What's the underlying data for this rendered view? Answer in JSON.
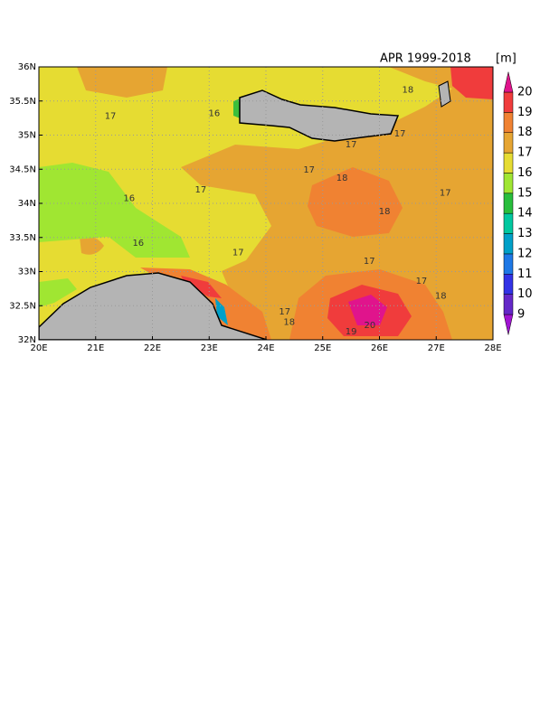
{
  "chart_data": {
    "type": "contour-map",
    "title": "APR 1999-2018",
    "unit": "[m]",
    "xlim": [
      20,
      28
    ],
    "ylim": [
      32,
      36
    ],
    "xticks": [
      {
        "value": 20,
        "label": "20E"
      },
      {
        "value": 21,
        "label": "21E"
      },
      {
        "value": 22,
        "label": "22E"
      },
      {
        "value": 23,
        "label": "23E"
      },
      {
        "value": 24,
        "label": "24E"
      },
      {
        "value": 25,
        "label": "25E"
      },
      {
        "value": 26,
        "label": "26E"
      },
      {
        "value": 27,
        "label": "27E"
      },
      {
        "value": 28,
        "label": "28E"
      }
    ],
    "yticks": [
      {
        "value": 32,
        "label": "32N"
      },
      {
        "value": 32.5,
        "label": "32.5N"
      },
      {
        "value": 33,
        "label": "33N"
      },
      {
        "value": 33.5,
        "label": "33.5N"
      },
      {
        "value": 34,
        "label": "34N"
      },
      {
        "value": 34.5,
        "label": "34.5N"
      },
      {
        "value": 35,
        "label": "35N"
      },
      {
        "value": 35.5,
        "label": "35.5N"
      },
      {
        "value": 36,
        "label": "36N"
      }
    ],
    "grid": true,
    "colorbar": {
      "levels": [
        9,
        10,
        11,
        12,
        13,
        14,
        15,
        16,
        17,
        18,
        19,
        20
      ],
      "colors": [
        "#a014d2",
        "#6428c8",
        "#3232e6",
        "#1e78e6",
        "#00a0c8",
        "#00c8a0",
        "#28be3c",
        "#a0e632",
        "#e6dc32",
        "#e6a532",
        "#f08232",
        "#f03c3c",
        "#e0148c"
      ]
    },
    "contour_labels": [
      {
        "value": 16,
        "lon": 23.09,
        "lat": 35.32
      },
      {
        "value": 17,
        "lon": 21.26,
        "lat": 35.28
      },
      {
        "value": 18,
        "lon": 26.5,
        "lat": 35.66
      },
      {
        "value": 17,
        "lon": 26.36,
        "lat": 35.02
      },
      {
        "value": 17,
        "lon": 25.5,
        "lat": 34.86
      },
      {
        "value": 17,
        "lon": 24.76,
        "lat": 34.49
      },
      {
        "value": 18,
        "lon": 25.34,
        "lat": 34.37
      },
      {
        "value": 17,
        "lon": 22.85,
        "lat": 34.2
      },
      {
        "value": 16,
        "lon": 21.59,
        "lat": 34.07
      },
      {
        "value": 17,
        "lon": 27.16,
        "lat": 34.15
      },
      {
        "value": 18,
        "lon": 26.09,
        "lat": 33.88
      },
      {
        "value": 16,
        "lon": 21.75,
        "lat": 33.42
      },
      {
        "value": 17,
        "lon": 23.51,
        "lat": 33.28
      },
      {
        "value": 17,
        "lon": 25.82,
        "lat": 33.15
      },
      {
        "value": 17,
        "lon": 26.74,
        "lat": 32.86
      },
      {
        "value": 18,
        "lon": 27.08,
        "lat": 32.64
      },
      {
        "value": 17,
        "lon": 24.33,
        "lat": 32.41
      },
      {
        "value": 18,
        "lon": 24.41,
        "lat": 32.26
      },
      {
        "value": 19,
        "lon": 25.5,
        "lat": 32.12
      },
      {
        "value": 20,
        "lon": 25.83,
        "lat": 32.21
      }
    ]
  }
}
